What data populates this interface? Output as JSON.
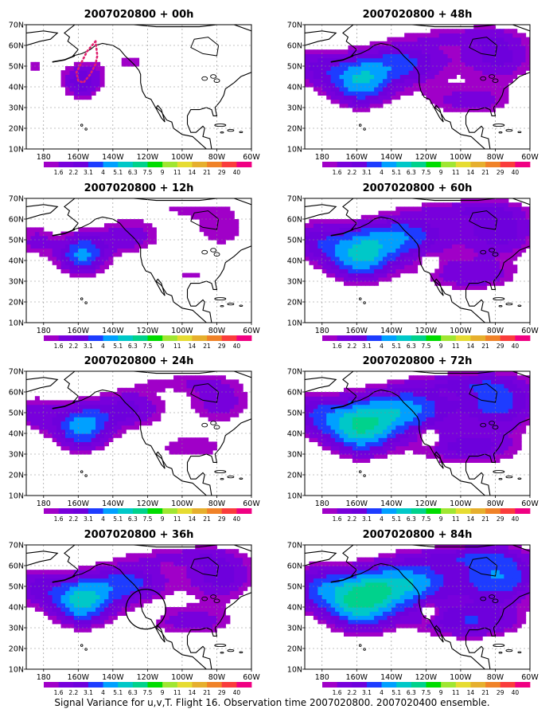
{
  "chart_data": {
    "type": "heatmap",
    "caption": "Signal Variance for u,v,T. Flight 16. Observation time 2007020800. 2007020400 ensemble.",
    "x_tick_labels": [
      "180",
      "160W",
      "140W",
      "120W",
      "100W",
      "80W",
      "60W"
    ],
    "y_tick_labels": [
      "10N",
      "20N",
      "30N",
      "40N",
      "50N",
      "60N",
      "70N"
    ],
    "xlim": [
      -190,
      -60
    ],
    "ylim": [
      10,
      70
    ],
    "grid": true,
    "colorbar": {
      "labels": [
        "1.6",
        "2.2",
        "3.1",
        "4",
        "5.1",
        "6.3",
        "7.5",
        "9",
        "11",
        "14",
        "21",
        "29",
        "40"
      ],
      "colors": [
        "#a000c8",
        "#7800dc",
        "#6e00dc",
        "#1e3cff",
        "#00a0ff",
        "#00c8c8",
        "#00d28c",
        "#00dc00",
        "#a0e632",
        "#e6dc32",
        "#e6af2d",
        "#f08228",
        "#fa3c3c",
        "#f00082"
      ]
    },
    "panels": [
      {
        "title": "2007020800 + 00h",
        "lead_hours": 0,
        "level_scale": 0.55,
        "extent": 0.2,
        "overlay": "dotted-track"
      },
      {
        "title": "2007020800 + 48h",
        "lead_hours": 48,
        "level_scale": 0.85,
        "extent": 0.75,
        "overlay": "none"
      },
      {
        "title": "2007020800 + 12h",
        "lead_hours": 12,
        "level_scale": 0.75,
        "extent": 0.4,
        "overlay": "none"
      },
      {
        "title": "2007020800 + 60h",
        "lead_hours": 60,
        "level_scale": 0.9,
        "extent": 0.82,
        "overlay": "none"
      },
      {
        "title": "2007020800 + 24h",
        "lead_hours": 24,
        "level_scale": 0.8,
        "extent": 0.55,
        "overlay": "none"
      },
      {
        "title": "2007020800 + 72h",
        "lead_hours": 72,
        "level_scale": 1.0,
        "extent": 0.88,
        "overlay": "none"
      },
      {
        "title": "2007020800 + 36h",
        "lead_hours": 36,
        "level_scale": 0.95,
        "extent": 0.65,
        "overlay": "circle"
      },
      {
        "title": "2007020800 + 84h",
        "lead_hours": 84,
        "level_scale": 1.05,
        "extent": 0.95,
        "overlay": "none"
      }
    ]
  }
}
